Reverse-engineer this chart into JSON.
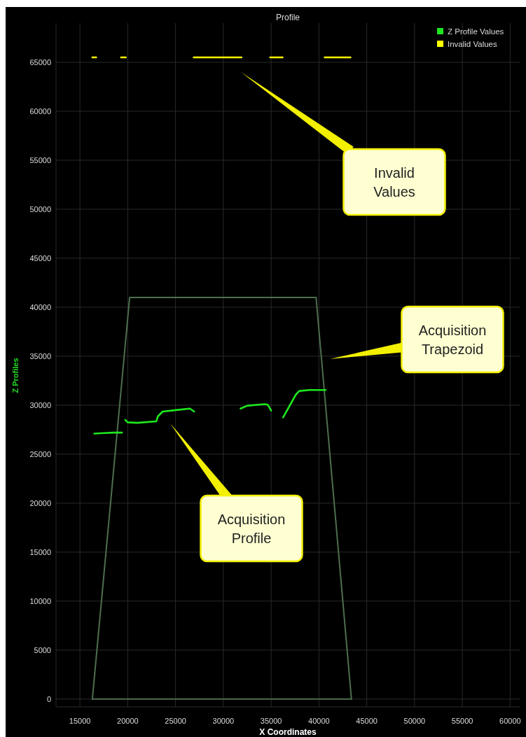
{
  "chart_data": {
    "type": "line",
    "title": "Profile",
    "xlabel": "X Coordinates",
    "ylabel": "Z Profiles",
    "xlim": [
      12500,
      61000
    ],
    "ylim": [
      -800,
      69000
    ],
    "xticks": [
      15000,
      20000,
      25000,
      30000,
      35000,
      40000,
      45000,
      50000,
      55000,
      60000
    ],
    "yticks": [
      0,
      5000,
      10000,
      15000,
      20000,
      25000,
      30000,
      35000,
      40000,
      45000,
      50000,
      55000,
      60000,
      65000
    ],
    "grid": true,
    "legend": "top right",
    "series": [
      {
        "color": "#4e6e4e",
        "x": [
          16300,
          20200,
          39700,
          43400
        ],
        "values": [
          0,
          41000,
          41000,
          0
        ]
      },
      {
        "color": "#4e6e4e",
        "x": [
          16300,
          43400
        ],
        "values": [
          0,
          0
        ]
      },
      {
        "name": "Z Profile Values",
        "color": "#1ee61e",
        "x": [
          16500,
          17500,
          18500,
          19400,
          19570,
          19740,
          19970,
          21000,
          23000,
          23150,
          23650,
          24600,
          26500,
          26950,
          29400,
          31800,
          32500,
          34300,
          34650,
          35000,
          35600,
          36250,
          37600,
          37950,
          39000,
          40700
        ],
        "values": [
          27100,
          27150,
          27200,
          27200,
          null,
          28500,
          28250,
          28200,
          28350,
          28850,
          29350,
          29450,
          29650,
          29350,
          null,
          29650,
          29950,
          30100,
          30050,
          29450,
          null,
          28750,
          31100,
          31450,
          31550,
          31550
        ]
      },
      {
        "name": "Invalid Values",
        "color": "#ffff00",
        "x": [
          16300,
          16700,
          18000,
          19300,
          19800,
          23000,
          26900,
          31900,
          33400,
          34900,
          36200,
          38400,
          40600,
          43300
        ],
        "values": [
          65500,
          65500,
          null,
          65500,
          65500,
          null,
          65500,
          65500,
          null,
          65500,
          65500,
          null,
          65500,
          65500
        ]
      }
    ],
    "annotations": [
      "Invalid Values",
      "Acquisition Trapezoid",
      "Acquisition Profile"
    ]
  }
}
